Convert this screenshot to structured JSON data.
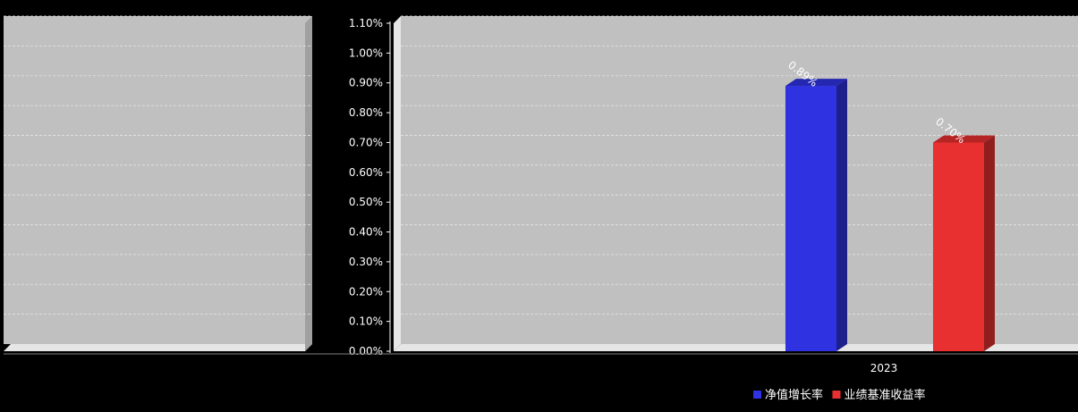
{
  "chart_data": [
    {
      "type": "bar",
      "title": "",
      "xlabel": "",
      "ylabel": "",
      "categories": [],
      "series": [],
      "ylim": [
        0,
        1.1
      ],
      "grid": true
    },
    {
      "type": "bar",
      "title": "",
      "xlabel": "",
      "ylabel": "",
      "categories": [
        "2023"
      ],
      "series": [
        {
          "name": "净值增长率",
          "values": [
            0.89
          ],
          "labels": [
            "0.89%"
          ],
          "color": "#2e32e0"
        },
        {
          "name": "业绩基准收益率",
          "values": [
            0.7
          ],
          "labels": [
            "0.70%"
          ],
          "color": "#e83030"
        }
      ],
      "yticks": [
        "0.00%",
        "0.10%",
        "0.20%",
        "0.30%",
        "0.40%",
        "0.50%",
        "0.60%",
        "0.70%",
        "0.80%",
        "0.90%",
        "1.00%",
        "1.10%"
      ],
      "ylim": [
        0,
        1.1
      ],
      "grid": true,
      "legend": "bottom-right"
    }
  ],
  "colors": {
    "page": "#000000",
    "plot": "#c0c0c0",
    "wall": "#e6e6e6",
    "grid": "#e4e4e4",
    "text": "#ffffff"
  }
}
